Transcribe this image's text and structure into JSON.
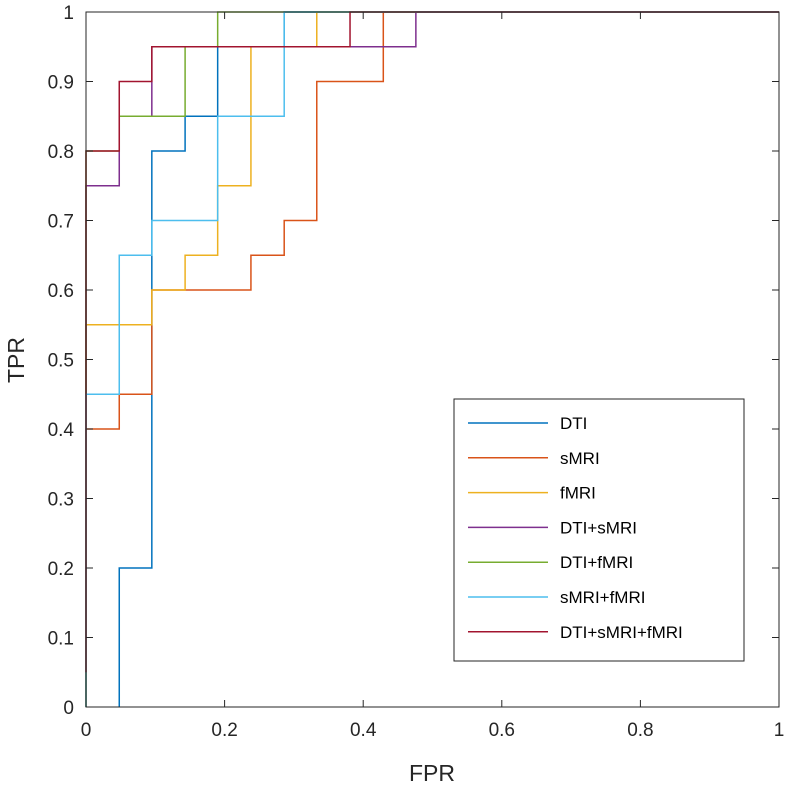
{
  "chart_data": {
    "type": "line",
    "title": "",
    "xlabel": "FPR",
    "ylabel": "TPR",
    "xlim": [
      0,
      1
    ],
    "ylim": [
      0,
      1
    ],
    "xticks": [
      0,
      0.2,
      0.4,
      0.6,
      0.8,
      1
    ],
    "xtick_labels": [
      "0",
      "0.2",
      "0.4",
      "0.6",
      "0.8",
      "1"
    ],
    "yticks": [
      0,
      0.1,
      0.2,
      0.3,
      0.4,
      0.5,
      0.6,
      0.7,
      0.8,
      0.9,
      1
    ],
    "ytick_labels": [
      "0",
      "0.1",
      "0.2",
      "0.3",
      "0.4",
      "0.5",
      "0.6",
      "0.7",
      "0.8",
      "0.9",
      "1"
    ],
    "grid": false,
    "legend_position": "lower-right",
    "series": [
      {
        "name": "DTI",
        "color": "#0072BD",
        "x": [
          0.048,
          0.048,
          0.095,
          0.095,
          0.143,
          0.143,
          0.19,
          0.19,
          0.286,
          0.286,
          1
        ],
        "y": [
          0,
          0.2,
          0.2,
          0.8,
          0.8,
          0.85,
          0.85,
          0.95,
          0.95,
          1,
          1
        ]
      },
      {
        "name": "sMRI",
        "color": "#D95319",
        "x": [
          0,
          0,
          0.048,
          0.048,
          0.095,
          0.095,
          0.238,
          0.238,
          0.286,
          0.286,
          0.333,
          0.333,
          0.429,
          0.429,
          1
        ],
        "y": [
          0,
          0.4,
          0.4,
          0.45,
          0.45,
          0.6,
          0.6,
          0.65,
          0.65,
          0.7,
          0.7,
          0.9,
          0.9,
          1,
          1
        ]
      },
      {
        "name": "fMRI",
        "color": "#EDB120",
        "x": [
          0,
          0,
          0.095,
          0.095,
          0.143,
          0.143,
          0.19,
          0.19,
          0.238,
          0.238,
          0.333,
          0.333,
          1
        ],
        "y": [
          0,
          0.55,
          0.55,
          0.6,
          0.6,
          0.65,
          0.65,
          0.75,
          0.75,
          0.95,
          0.95,
          1,
          1
        ]
      },
      {
        "name": "DTI+sMRI",
        "color": "#7E2F8E",
        "x": [
          0,
          0,
          0.048,
          0.048,
          0.095,
          0.095,
          0.476,
          0.476,
          1
        ],
        "y": [
          0,
          0.75,
          0.75,
          0.85,
          0.85,
          0.95,
          0.95,
          1,
          1
        ]
      },
      {
        "name": "DTI+fMRI",
        "color": "#77AC30",
        "x": [
          0,
          0,
          0.048,
          0.048,
          0.143,
          0.143,
          0.19,
          0.19,
          1
        ],
        "y": [
          0,
          0.8,
          0.8,
          0.85,
          0.85,
          0.95,
          0.95,
          1,
          1
        ]
      },
      {
        "name": "sMRI+fMRI",
        "color": "#4DBEEE",
        "x": [
          0,
          0,
          0.048,
          0.048,
          0.095,
          0.095,
          0.19,
          0.19,
          0.286,
          0.286,
          1
        ],
        "y": [
          0,
          0.45,
          0.45,
          0.65,
          0.65,
          0.7,
          0.7,
          0.85,
          0.85,
          1,
          1
        ]
      },
      {
        "name": "DTI+sMRI+fMRI",
        "color": "#A2142F",
        "x": [
          0,
          0,
          0.048,
          0.048,
          0.095,
          0.095,
          0.381,
          0.381,
          1
        ],
        "y": [
          0.05,
          0.8,
          0.8,
          0.9,
          0.9,
          0.95,
          0.95,
          1,
          1
        ]
      }
    ]
  }
}
